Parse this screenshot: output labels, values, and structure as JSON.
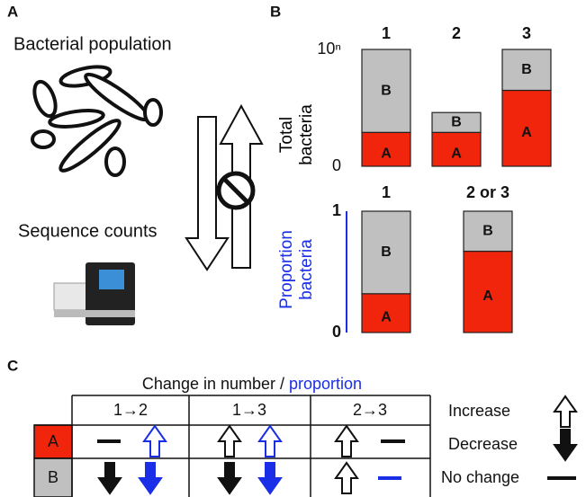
{
  "panel_a": {
    "label": "A",
    "population": "Bacterial population",
    "counts": "Sequence counts"
  },
  "panel_b": {
    "label": "B"
  },
  "chart_data": [
    {
      "type": "bar",
      "stacked": true,
      "categories": [
        "1",
        "2",
        "3"
      ],
      "series": [
        {
          "name": "A",
          "color": "#f0250c",
          "values": [
            0.29,
            0.29,
            0.65
          ]
        },
        {
          "name": "B",
          "color": "#c0c0c0",
          "values": [
            0.71,
            0.17,
            0.35
          ]
        }
      ],
      "ylim": [
        0,
        1
      ],
      "yticks": [
        0,
        {
          "value": 1,
          "label": "10ⁿ"
        }
      ],
      "y_label": [
        "Total",
        "bacteria"
      ],
      "axis_color": "#000000",
      "axis_line": false
    },
    {
      "type": "bar",
      "stacked": true,
      "categories": [
        "1",
        "2 or 3"
      ],
      "series": [
        {
          "name": "A",
          "color": "#f0250c",
          "values": [
            0.32,
            0.67
          ]
        },
        {
          "name": "B",
          "color": "#c0c0c0",
          "values": [
            0.68,
            0.33
          ]
        }
      ],
      "ylim": [
        0,
        1
      ],
      "yticks": [
        0,
        1
      ],
      "y_label": [
        "Proportion",
        "bacteria"
      ],
      "axis_color": "#1a2ee8",
      "axis_line": true
    }
  ],
  "panel_c": {
    "label": "C",
    "title": [
      "Change in number / ",
      "proportion"
    ],
    "columns": [
      "1→2",
      "1→3",
      "2→3"
    ],
    "rows": [
      "A",
      "B"
    ],
    "legend": [
      "Increase",
      "Decrease",
      "No change"
    ]
  }
}
